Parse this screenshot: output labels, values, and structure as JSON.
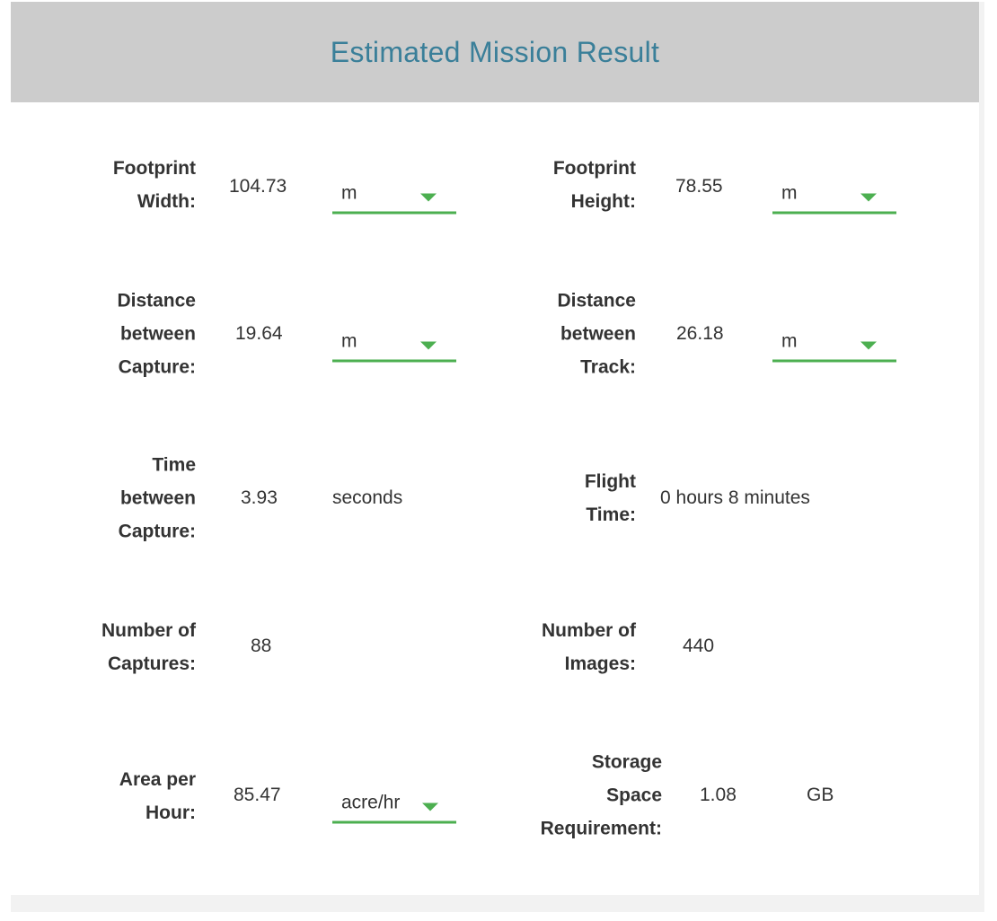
{
  "title": "Estimated Mission Result",
  "colors": {
    "accent": "#4caf50",
    "title": "#3a7f99",
    "header_bg": "#cccccc"
  },
  "fields": {
    "footprint_width": {
      "label": "Footprint\nWidth:",
      "value": "104.73",
      "unit": "m"
    },
    "footprint_height": {
      "label": "Footprint\nHeight:",
      "value": "78.55",
      "unit": "m"
    },
    "distance_capture": {
      "label": "Distance\nbetween\nCapture:",
      "value": "19.64",
      "unit": "m"
    },
    "distance_track": {
      "label": "Distance\nbetween\nTrack:",
      "value": "26.18",
      "unit": "m"
    },
    "time_capture": {
      "label": "Time\nbetween\nCapture:",
      "value": "3.93",
      "unit": "seconds"
    },
    "flight_time": {
      "label": "Flight\nTime:",
      "value": "0 hours 8 minutes"
    },
    "num_captures": {
      "label": "Number of\nCaptures:",
      "value": "88"
    },
    "num_images": {
      "label": "Number of\nImages:",
      "value": "440"
    },
    "area_per_hour": {
      "label": "Area per\nHour:",
      "value": "85.47",
      "unit": "acre/hr"
    },
    "storage": {
      "label": "Storage\nSpace\nRequirement:",
      "value": "1.08",
      "unit": "GB"
    }
  }
}
